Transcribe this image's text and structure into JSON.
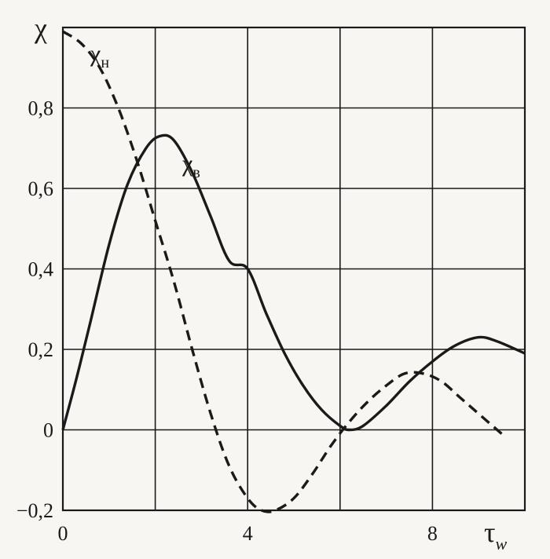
{
  "chart_data": {
    "type": "line",
    "xlabel": "τ",
    "xlabel_sub": "w",
    "ylabel": "χ",
    "xlim": [
      0,
      10
    ],
    "ylim": [
      -0.2,
      1.0
    ],
    "x_ticks": [
      0,
      4,
      8
    ],
    "x_tick_labels": [
      "0",
      "4",
      "8"
    ],
    "y_ticks": [
      -0.2,
      0,
      0.2,
      0.4,
      0.6,
      0.8
    ],
    "y_tick_labels": [
      "−0,2",
      "0",
      "0,2",
      "0,4",
      "0,6",
      "0,8"
    ],
    "grid": true,
    "colors": {
      "line": "#1a1a1a",
      "background": "#f7f6f2",
      "grid": "#1a1a1a"
    },
    "series": [
      {
        "name": "χв",
        "label_text": "χ",
        "label_sub": "в",
        "style": "solid",
        "points": [
          [
            0,
            0.0
          ],
          [
            0.3,
            0.13
          ],
          [
            0.6,
            0.27
          ],
          [
            1.0,
            0.46
          ],
          [
            1.4,
            0.61
          ],
          [
            1.8,
            0.7
          ],
          [
            2.1,
            0.73
          ],
          [
            2.4,
            0.72
          ],
          [
            2.8,
            0.64
          ],
          [
            3.2,
            0.53
          ],
          [
            3.6,
            0.42
          ],
          [
            4.0,
            0.4
          ],
          [
            4.4,
            0.29
          ],
          [
            4.8,
            0.19
          ],
          [
            5.2,
            0.11
          ],
          [
            5.6,
            0.05
          ],
          [
            6.0,
            0.01
          ],
          [
            6.2,
            0.0
          ],
          [
            6.5,
            0.01
          ],
          [
            7.0,
            0.06
          ],
          [
            7.5,
            0.12
          ],
          [
            8.0,
            0.17
          ],
          [
            8.5,
            0.21
          ],
          [
            9.0,
            0.23
          ],
          [
            9.4,
            0.22
          ],
          [
            10.0,
            0.19
          ]
        ]
      },
      {
        "name": "χн",
        "label_text": "χ",
        "label_sub": "н",
        "style": "dashed",
        "points": [
          [
            0,
            0.99
          ],
          [
            0.4,
            0.96
          ],
          [
            0.8,
            0.9
          ],
          [
            1.2,
            0.8
          ],
          [
            1.6,
            0.67
          ],
          [
            2.0,
            0.52
          ],
          [
            2.4,
            0.37
          ],
          [
            2.8,
            0.2
          ],
          [
            3.2,
            0.04
          ],
          [
            3.6,
            -0.09
          ],
          [
            4.0,
            -0.17
          ],
          [
            4.3,
            -0.2
          ],
          [
            4.6,
            -0.2
          ],
          [
            5.0,
            -0.17
          ],
          [
            5.4,
            -0.11
          ],
          [
            5.8,
            -0.04
          ],
          [
            6.2,
            0.02
          ],
          [
            6.6,
            0.07
          ],
          [
            7.0,
            0.11
          ],
          [
            7.4,
            0.14
          ],
          [
            7.8,
            0.14
          ],
          [
            8.2,
            0.12
          ],
          [
            8.6,
            0.08
          ],
          [
            9.0,
            0.04
          ],
          [
            9.5,
            -0.01
          ]
        ]
      }
    ]
  }
}
